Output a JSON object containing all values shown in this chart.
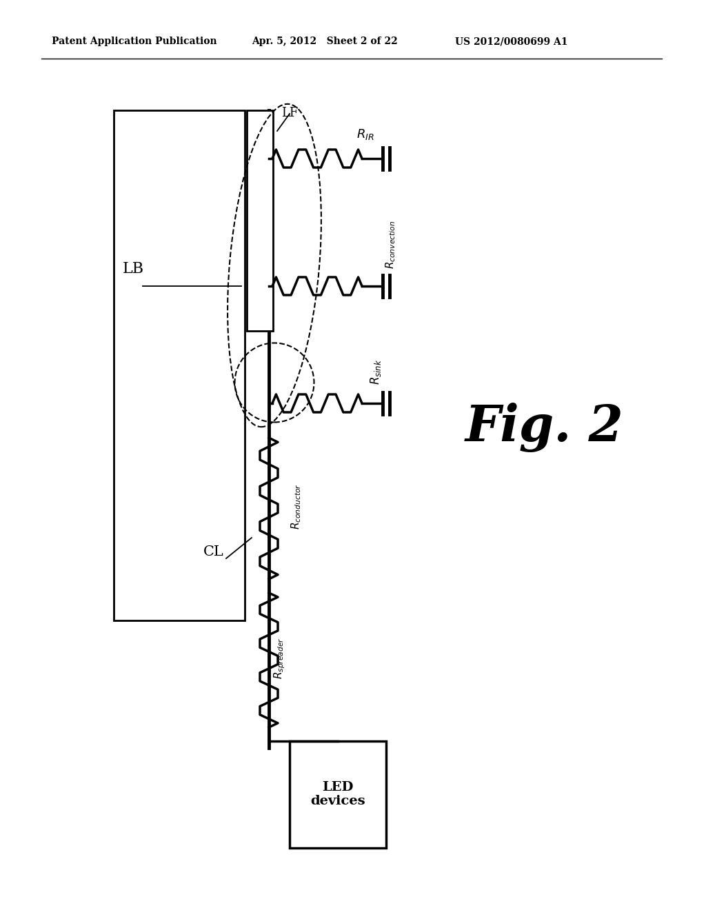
{
  "bg_color": "#ffffff",
  "header_left": "Patent Application Publication",
  "header_mid": "Apr. 5, 2012   Sheet 2 of 22",
  "header_right": "US 2012/0080699 A1",
  "fig_label": "Fig. 2",
  "label_LB": "LB",
  "label_LF": "LF",
  "label_CL": "CL",
  "label_LED": "LED\ndevices"
}
